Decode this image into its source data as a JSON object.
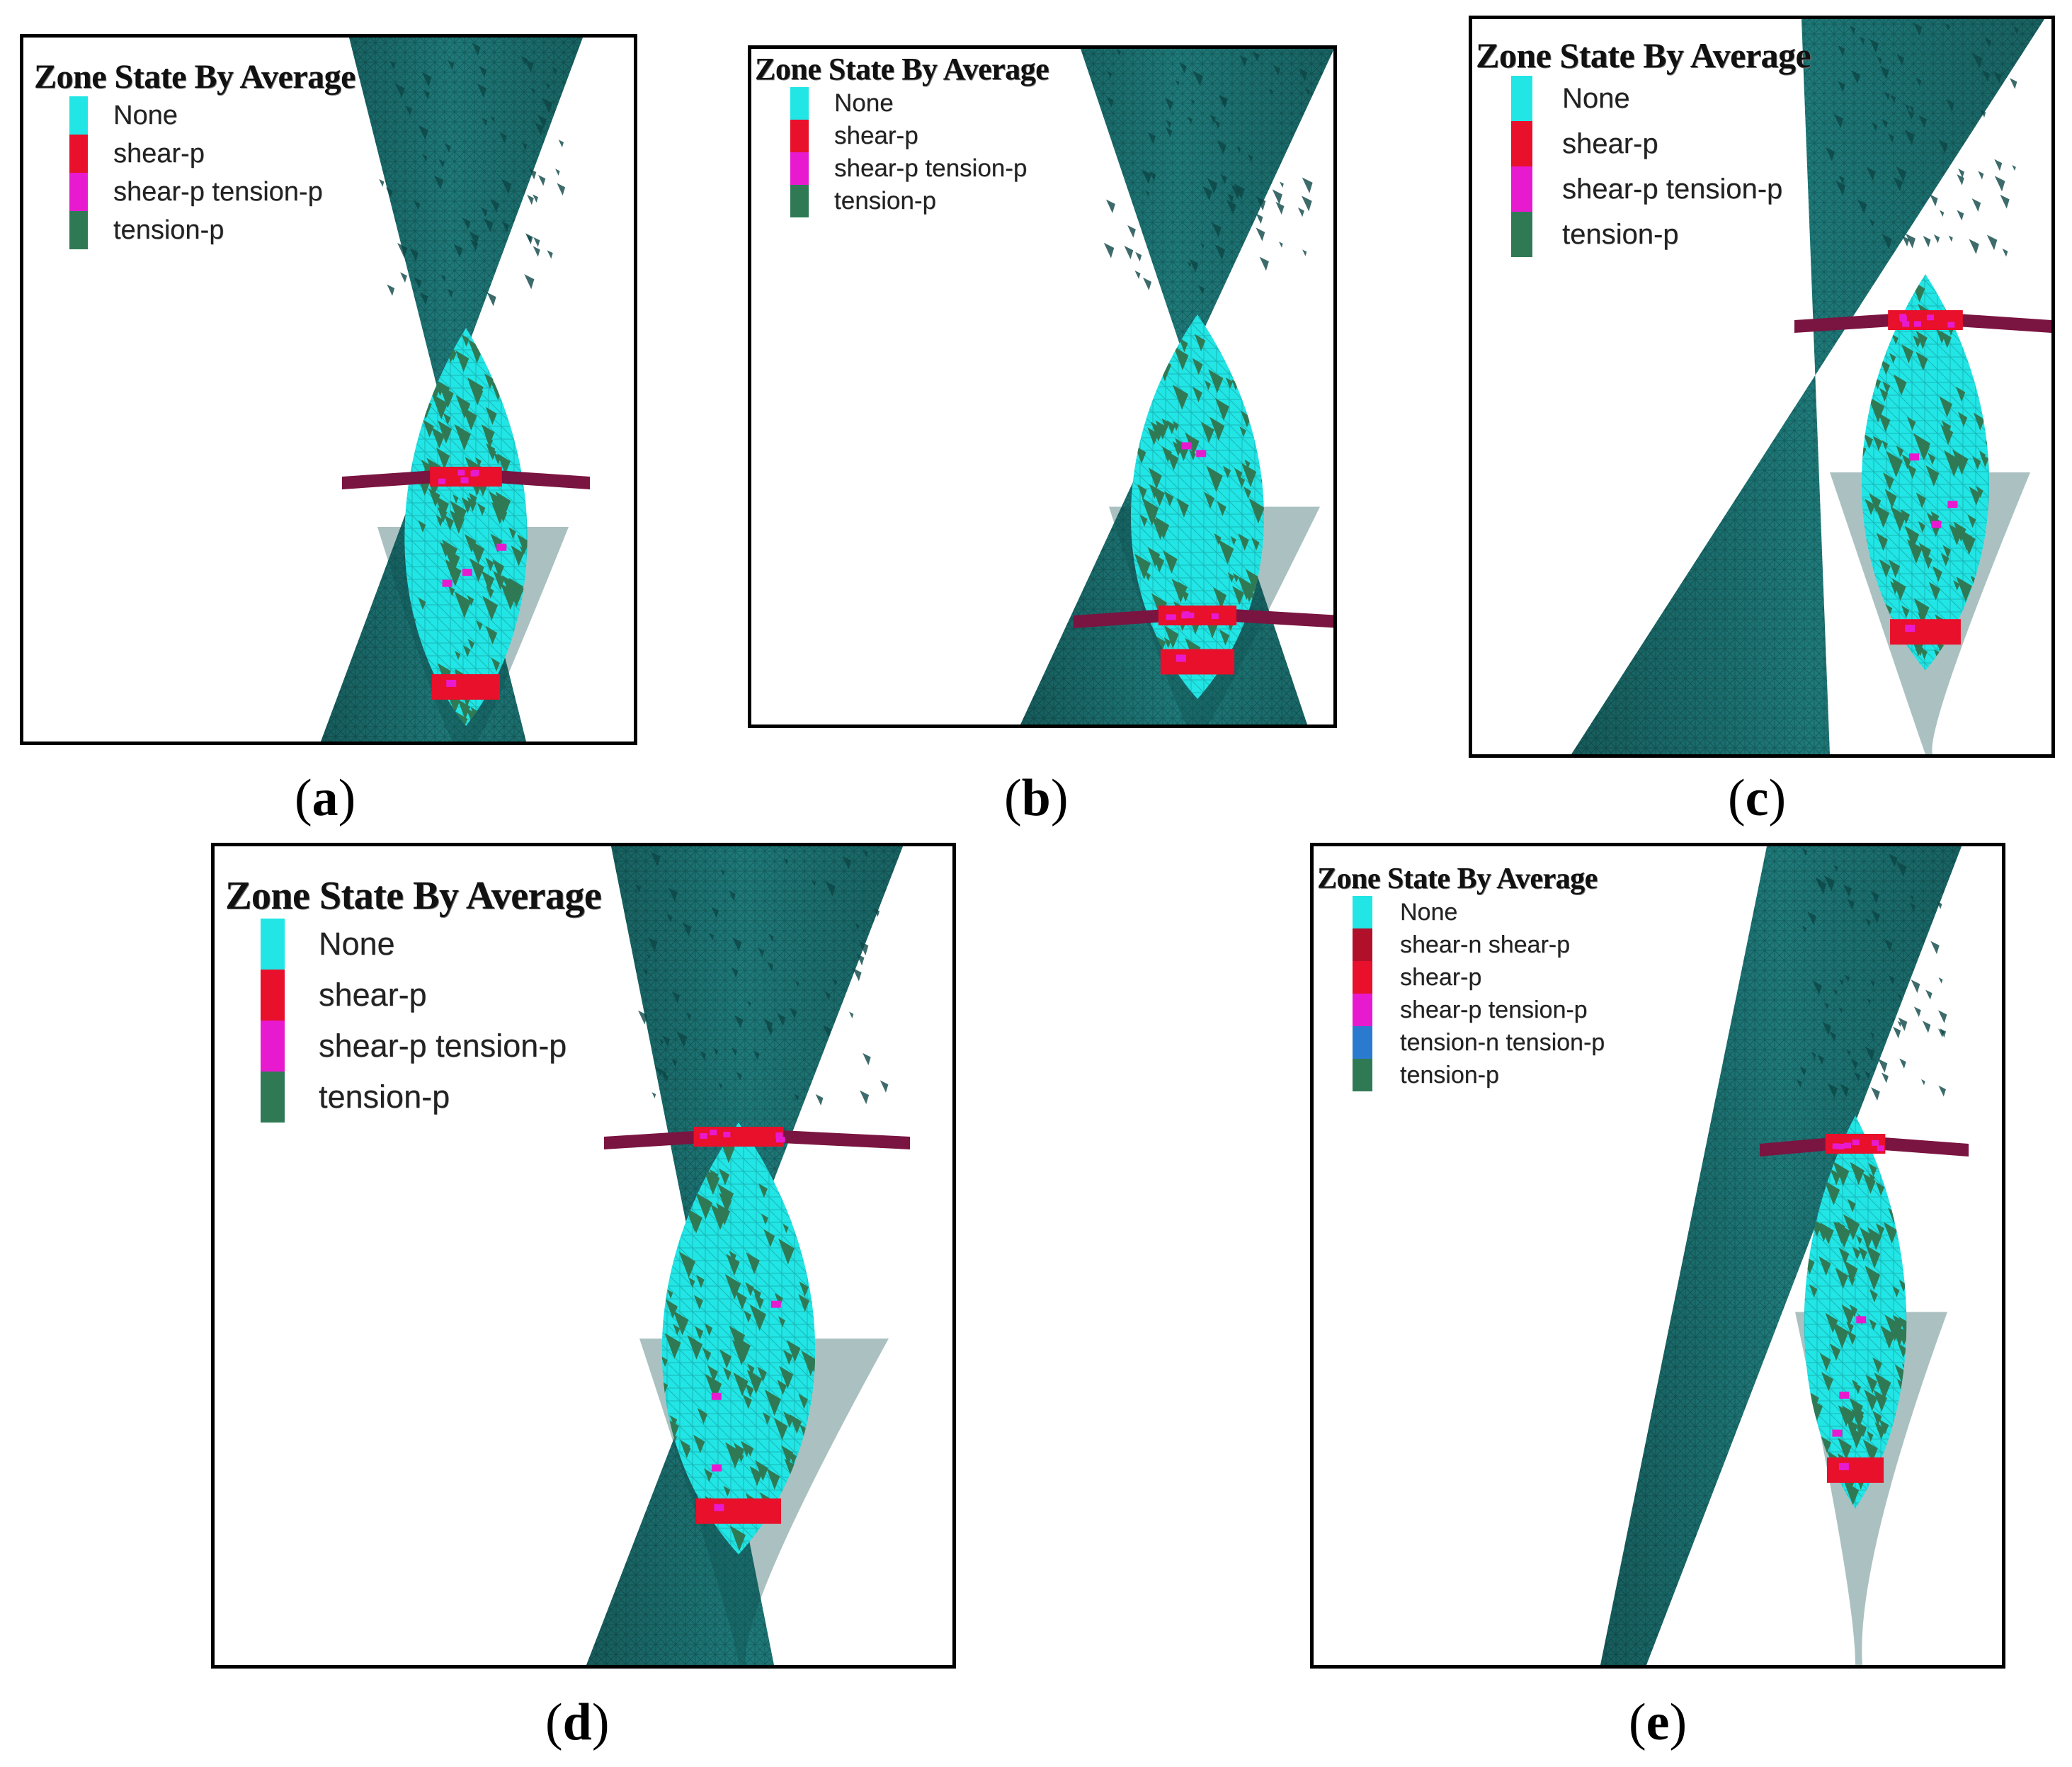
{
  "legend_title": "Zone State By Average",
  "states": {
    "none": {
      "label": "None",
      "color": "#22e5e5"
    },
    "shear_n_shear_p": {
      "label": "shear-n shear-p",
      "color": "#b0102a"
    },
    "shear_p": {
      "label": "shear-p",
      "color": "#e8102a"
    },
    "shear_p_tension_p": {
      "label": "shear-p tension-p",
      "color": "#e81ad0"
    },
    "tension_n_tension_p": {
      "label": "tension-n tension-p",
      "color": "#2a7ad0"
    },
    "tension_p": {
      "label": "tension-p",
      "color": "#2f7a55"
    }
  },
  "body_color": "#1f7a7a",
  "body_shade": "#0f4d4d",
  "panels": [
    {
      "id": "a",
      "caption": "a",
      "legend": [
        "None",
        "shear-p",
        "shear-p tension-p",
        "tension-p"
      ]
    },
    {
      "id": "b",
      "caption": "b",
      "legend": [
        "None",
        "shear-p",
        "shear-p tension-p",
        "tension-p"
      ]
    },
    {
      "id": "c",
      "caption": "c",
      "legend": [
        "None",
        "shear-p",
        "shear-p tension-p",
        "tension-p"
      ]
    },
    {
      "id": "d",
      "caption": "d",
      "legend": [
        "None",
        "shear-p",
        "shear-p tension-p",
        "tension-p"
      ]
    },
    {
      "id": "e",
      "caption": "e",
      "legend": [
        "None",
        "shear-n shear-p",
        "shear-p",
        "shear-p tension-p",
        "tension-n tension-p",
        "tension-p"
      ]
    }
  ]
}
